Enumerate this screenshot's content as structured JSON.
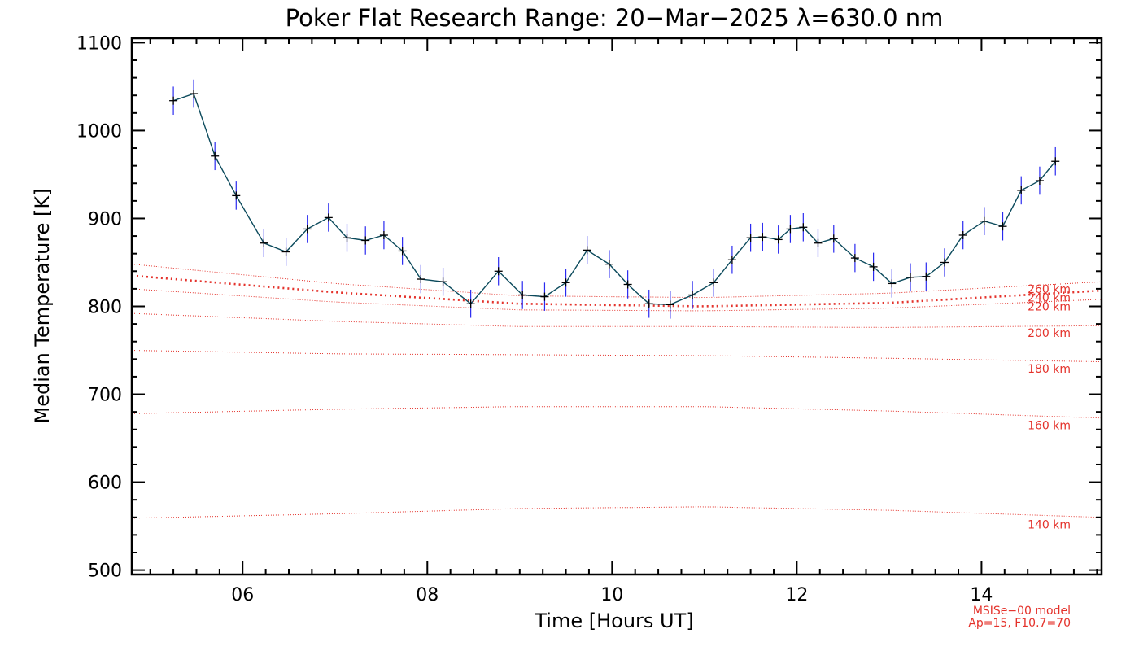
{
  "chart_data": {
    "type": "line",
    "title": "Poker Flat Research Range: 20−Mar−2025 λ=630.0 nm",
    "xlabel": "Time [Hours UT]",
    "ylabel": "Median Temperature [K]",
    "xlim": [
      4.8,
      15.3
    ],
    "ylim": [
      495,
      1105
    ],
    "x_ticks": [
      6,
      8,
      10,
      12,
      14
    ],
    "x_tick_labels": [
      "06",
      "08",
      "10",
      "12",
      "14"
    ],
    "y_ticks": [
      500,
      600,
      700,
      800,
      900,
      1000,
      1100
    ],
    "y_tick_labels": [
      "500",
      "600",
      "700",
      "800",
      "900",
      "1000",
      "1100"
    ],
    "series": [
      {
        "name": "Median Temperature",
        "color": "#0b4a5c",
        "errorbar_color": "#2a2af0",
        "error": 16,
        "x": [
          5.25,
          5.47,
          5.7,
          5.93,
          6.23,
          6.47,
          6.7,
          6.93,
          7.13,
          7.33,
          7.53,
          7.73,
          7.93,
          8.17,
          8.47,
          8.77,
          9.03,
          9.27,
          9.5,
          9.73,
          9.97,
          10.17,
          10.4,
          10.63,
          10.87,
          11.1,
          11.3,
          11.5,
          11.63,
          11.8,
          11.93,
          12.07,
          12.23,
          12.4,
          12.63,
          12.83,
          13.03,
          13.23,
          13.4,
          13.6,
          13.8,
          14.03,
          14.23,
          14.43,
          14.63,
          14.8
        ],
        "y": [
          1034,
          1042,
          971,
          926,
          872,
          862,
          888,
          901,
          878,
          875,
          881,
          863,
          831,
          828,
          803,
          840,
          813,
          811,
          827,
          864,
          848,
          825,
          803,
          802,
          813,
          827,
          853,
          878,
          879,
          876,
          888,
          890,
          872,
          877,
          855,
          845,
          826,
          833,
          834,
          850,
          881,
          897,
          891,
          932,
          943,
          965
        ]
      }
    ],
    "model_curves": [
      {
        "label": "260 km",
        "bold": false,
        "x": [
          4.8,
          7,
          9,
          11,
          13,
          15.3
        ],
        "y": [
          848,
          826,
          812,
          810,
          815,
          828
        ]
      },
      {
        "label": "240 km",
        "bold": true,
        "x": [
          4.8,
          7,
          9,
          11,
          13,
          15.3
        ],
        "y": [
          835,
          816,
          803,
          800,
          804,
          818
        ]
      },
      {
        "label": "220 km",
        "bold": false,
        "x": [
          4.8,
          7,
          9,
          11,
          13,
          15.3
        ],
        "y": [
          820,
          805,
          796,
          795,
          798,
          808
        ]
      },
      {
        "label": "200 km",
        "bold": false,
        "x": [
          4.8,
          7,
          9,
          11,
          13,
          15.3
        ],
        "y": [
          792,
          783,
          777,
          777,
          776,
          778
        ]
      },
      {
        "label": "180 km",
        "bold": false,
        "x": [
          4.8,
          7,
          9,
          11,
          13,
          15.3
        ],
        "y": [
          750,
          746,
          745,
          744,
          741,
          737
        ]
      },
      {
        "label": "160 km",
        "bold": false,
        "x": [
          4.8,
          7,
          9,
          11,
          13,
          15.3
        ],
        "y": [
          678,
          683,
          686,
          686,
          681,
          673
        ]
      },
      {
        "label": "140 km",
        "bold": false,
        "x": [
          4.8,
          7,
          9,
          11,
          13,
          15.3
        ],
        "y": [
          559,
          564,
          570,
          572,
          568,
          560
        ]
      }
    ],
    "model_note": [
      "MSISe−00 model",
      "Ap=15, F10.7=70"
    ],
    "colors": {
      "model": "#e4322b",
      "line": "#0b4a5c",
      "errorbar": "#2a2af0",
      "marker": "#000000"
    }
  }
}
